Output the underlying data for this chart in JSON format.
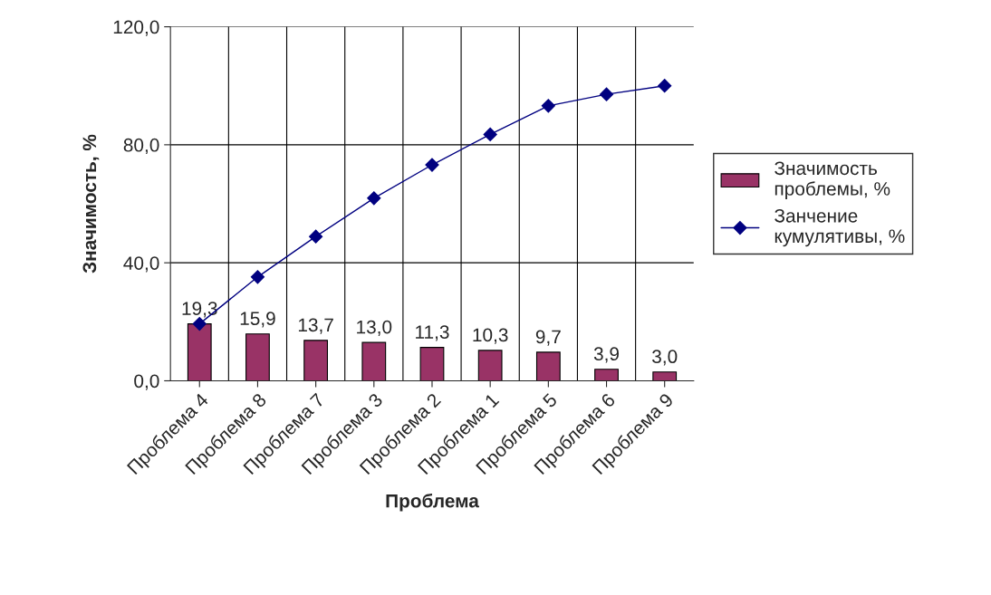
{
  "chart_data": {
    "type": "bar",
    "xlabel": "Проблема",
    "ylabel": "Значимость, %",
    "categories": [
      "Проблема 4",
      "Проблема 8",
      "Проблема 7",
      "Проблема 3",
      "Проблема 2",
      "Проблема 1",
      "Проблема 5",
      "Проблема 6",
      "Проблема 9"
    ],
    "series": [
      {
        "name": "Значимость проблемы, %",
        "color": "#993366",
        "values": [
          19.3,
          15.9,
          13.7,
          13.0,
          11.3,
          10.3,
          9.7,
          3.9,
          3.0
        ],
        "value_labels": [
          "19,3",
          "15,9",
          "13,7",
          "13,0",
          "11,3",
          "10,3",
          "9,7",
          "3,9",
          "3,0"
        ]
      },
      {
        "name": "Занчение кумулятивы, %",
        "type": "line",
        "color": "#000080",
        "marker": "diamond",
        "values": [
          19.3,
          35.2,
          48.9,
          61.9,
          73.2,
          83.5,
          93.2,
          97.1,
          100.0
        ]
      }
    ],
    "ylim": [
      0,
      120
    ],
    "yticks": [
      {
        "value": 0,
        "label": "0,0"
      },
      {
        "value": 40,
        "label": "40,0"
      },
      {
        "value": 80,
        "label": "80,0"
      },
      {
        "value": 120,
        "label": "120,0"
      }
    ],
    "grid": true,
    "legend": "right"
  }
}
